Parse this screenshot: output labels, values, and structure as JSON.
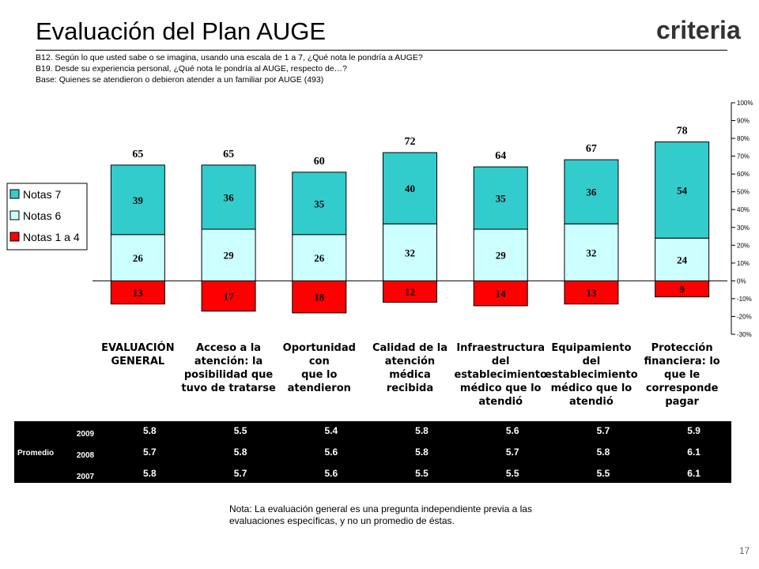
{
  "title": "Evaluación del Plan AUGE",
  "logo": "criteria",
  "subtitle_lines": [
    "B12. Según lo que usted sabe o se imagina, usando una escala de 1 a 7, ¿Qué nota le pondría a AUGE?",
    "B19. Desde su experiencia personal, ¿Qué nota le pondría al AUGE, respecto de…?",
    "Base: Quienes se atendieron o debieron atender a un familiar por AUGE (493)"
  ],
  "chart_data": {
    "type": "stacked_bar",
    "categories": [
      "EVALUACIÓN\nGENERAL",
      "Acceso a la\natención: la\nposibilidad que\ntuvo de tratarse",
      "Oportunidad con\nque lo\natendieron",
      "Calidad de la\natención médica\nrecibida",
      "Infraestructura\ndel\nestablecimiento\nmédico que lo\natendió",
      "Equipamiento\ndel\nestablecimiento\nmédico que lo\natendió",
      "Protección\nfinanciera: lo\nque le\ncorresponde\npagar"
    ],
    "series": [
      {
        "name": "Notas 1 a 4",
        "color": "#FF0000",
        "values": [
          -13,
          -17,
          -18,
          -12,
          -14,
          -13,
          -9
        ],
        "value_labels": [
          "13",
          "17",
          "18",
          "12",
          "14",
          "13",
          "9"
        ]
      },
      {
        "name": "Notas 6",
        "color": "#CCFFFF",
        "values": [
          26,
          29,
          26,
          32,
          29,
          32,
          24
        ]
      },
      {
        "name": "Notas 7",
        "color": "#33CCCC",
        "values": [
          39,
          36,
          35,
          40,
          35,
          36,
          54
        ]
      }
    ],
    "totals": [
      65,
      65,
      60,
      72,
      64,
      67,
      78
    ],
    "ylim": [
      -30,
      100
    ],
    "yticks": [
      {
        "value": 100,
        "label": "100%"
      },
      {
        "value": 90,
        "label": "90%"
      },
      {
        "value": 80,
        "label": "80%"
      },
      {
        "value": 70,
        "label": "70%"
      },
      {
        "value": 60,
        "label": "60%"
      },
      {
        "value": 50,
        "label": "50%"
      },
      {
        "value": 40,
        "label": "40%"
      },
      {
        "value": 30,
        "label": "30%"
      },
      {
        "value": 20,
        "label": "20%"
      },
      {
        "value": 10,
        "label": "10%"
      },
      {
        "value": 0,
        "label": "0%"
      },
      {
        "value": -10,
        "label": "-10%"
      },
      {
        "value": -20,
        "label": "-20%"
      },
      {
        "value": -30,
        "label": "-30%"
      }
    ],
    "legend": "left"
  },
  "table": {
    "row_header": "Promedio",
    "rows": [
      [
        "2009",
        "5.8",
        "5.5",
        "5.4",
        "5.8",
        "5.6",
        "5.7",
        "5.9"
      ],
      [
        "2008",
        "5.7",
        "5.8",
        "5.6",
        "5.8",
        "5.7",
        "5.8",
        "6.1"
      ],
      [
        "2007",
        "5.8",
        "5.7",
        "5.6",
        "5.5",
        "5.5",
        "5.5",
        "6.1"
      ]
    ]
  },
  "note": "Nota: La evaluación general es una pregunta independiente previa a las evaluaciones específicas, y no un promedio de éstas.",
  "page_number": "17"
}
